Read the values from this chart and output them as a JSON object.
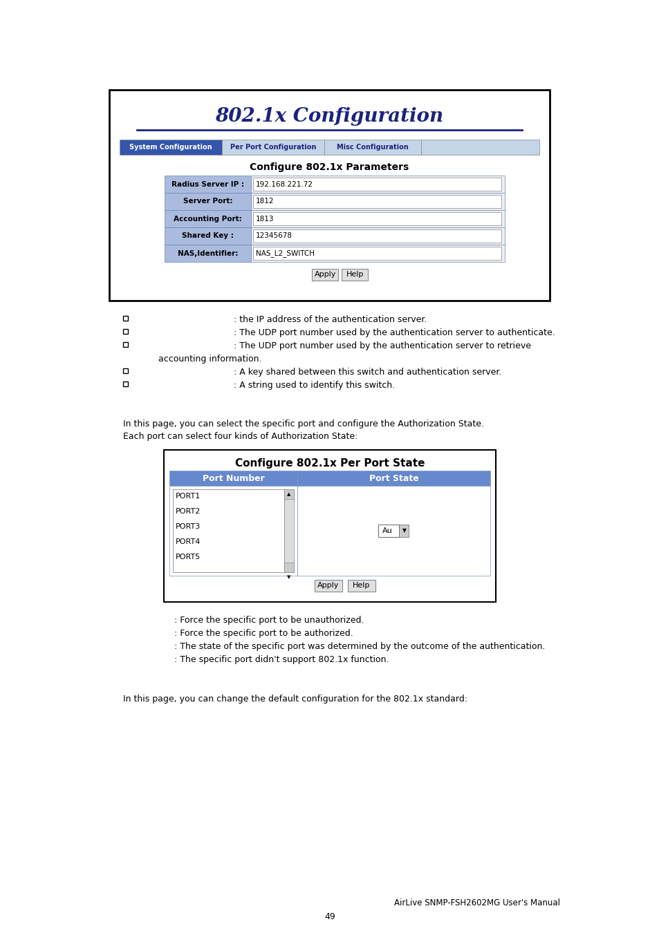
{
  "bg_color": "#ffffff",
  "title_802": "802.1x Configuration",
  "title_color": "#1a237e",
  "tab_labels": [
    "System Configuration",
    "Per Port Configuration",
    "Misc Configuration"
  ],
  "tab_active": 0,
  "tab_active_color": "#3355aa",
  "tab_inactive_color": "#c5d5e8",
  "tab_text_color_active": "#ffffff",
  "tab_text_color_inactive": "#1a237e",
  "config_title": "Configure 802.1x Parameters",
  "config_rows": [
    [
      "Radius Server IP :",
      "192.168.221.72"
    ],
    [
      "Server Port:",
      "1812"
    ],
    [
      "Accounting Port:",
      "1813"
    ],
    [
      "Shared Key :",
      "12345678"
    ],
    [
      "NAS,Identifier:",
      "NAS_L2_SWITCH"
    ]
  ],
  "row_label_color": "#6688cc",
  "row_bg_color": "#aabbdd",
  "input_bg": "#ffffff",
  "bullet_lines": [
    ": the IP address of the authentication server.",
    ": The UDP port number used by the authentication server to authenticate.",
    ": The UDP port number used by the authentication server to retrieve",
    "    accounting information.",
    ": A key shared between this switch and authentication server.",
    ": A string used to identify this switch."
  ],
  "bullet_has_square": [
    true,
    true,
    true,
    false,
    true,
    true
  ],
  "per_port_intro1": "In this page, you can select the specific port and configure the Authorization State.",
  "per_port_intro2": "Each port can select four kinds of Authorization State:",
  "per_port_table_title": "Configure 802.1x Per Port State",
  "col_headers": [
    "Port Number",
    "Port State"
  ],
  "col_header_color": "#6688cc",
  "port_list": [
    "PORT1",
    "PORT2",
    "PORT3",
    "PORT4",
    "PORT5"
  ],
  "port_state_value": "Au",
  "bullet_lines2": [
    ": Force the specific port to be unauthorized.",
    ": Force the specific port to be authorized.",
    ": The state of the specific port was determined by the outcome of the authentication.",
    ": The specific port didn't support 802.1x function."
  ],
  "misc_intro": "In this page, you can change the default configuration for the 802.1x standard:",
  "footer_text": "AirLive SNMP-FSH2602MG User's Manual",
  "page_number": "49",
  "outer_box_color": "#000000"
}
